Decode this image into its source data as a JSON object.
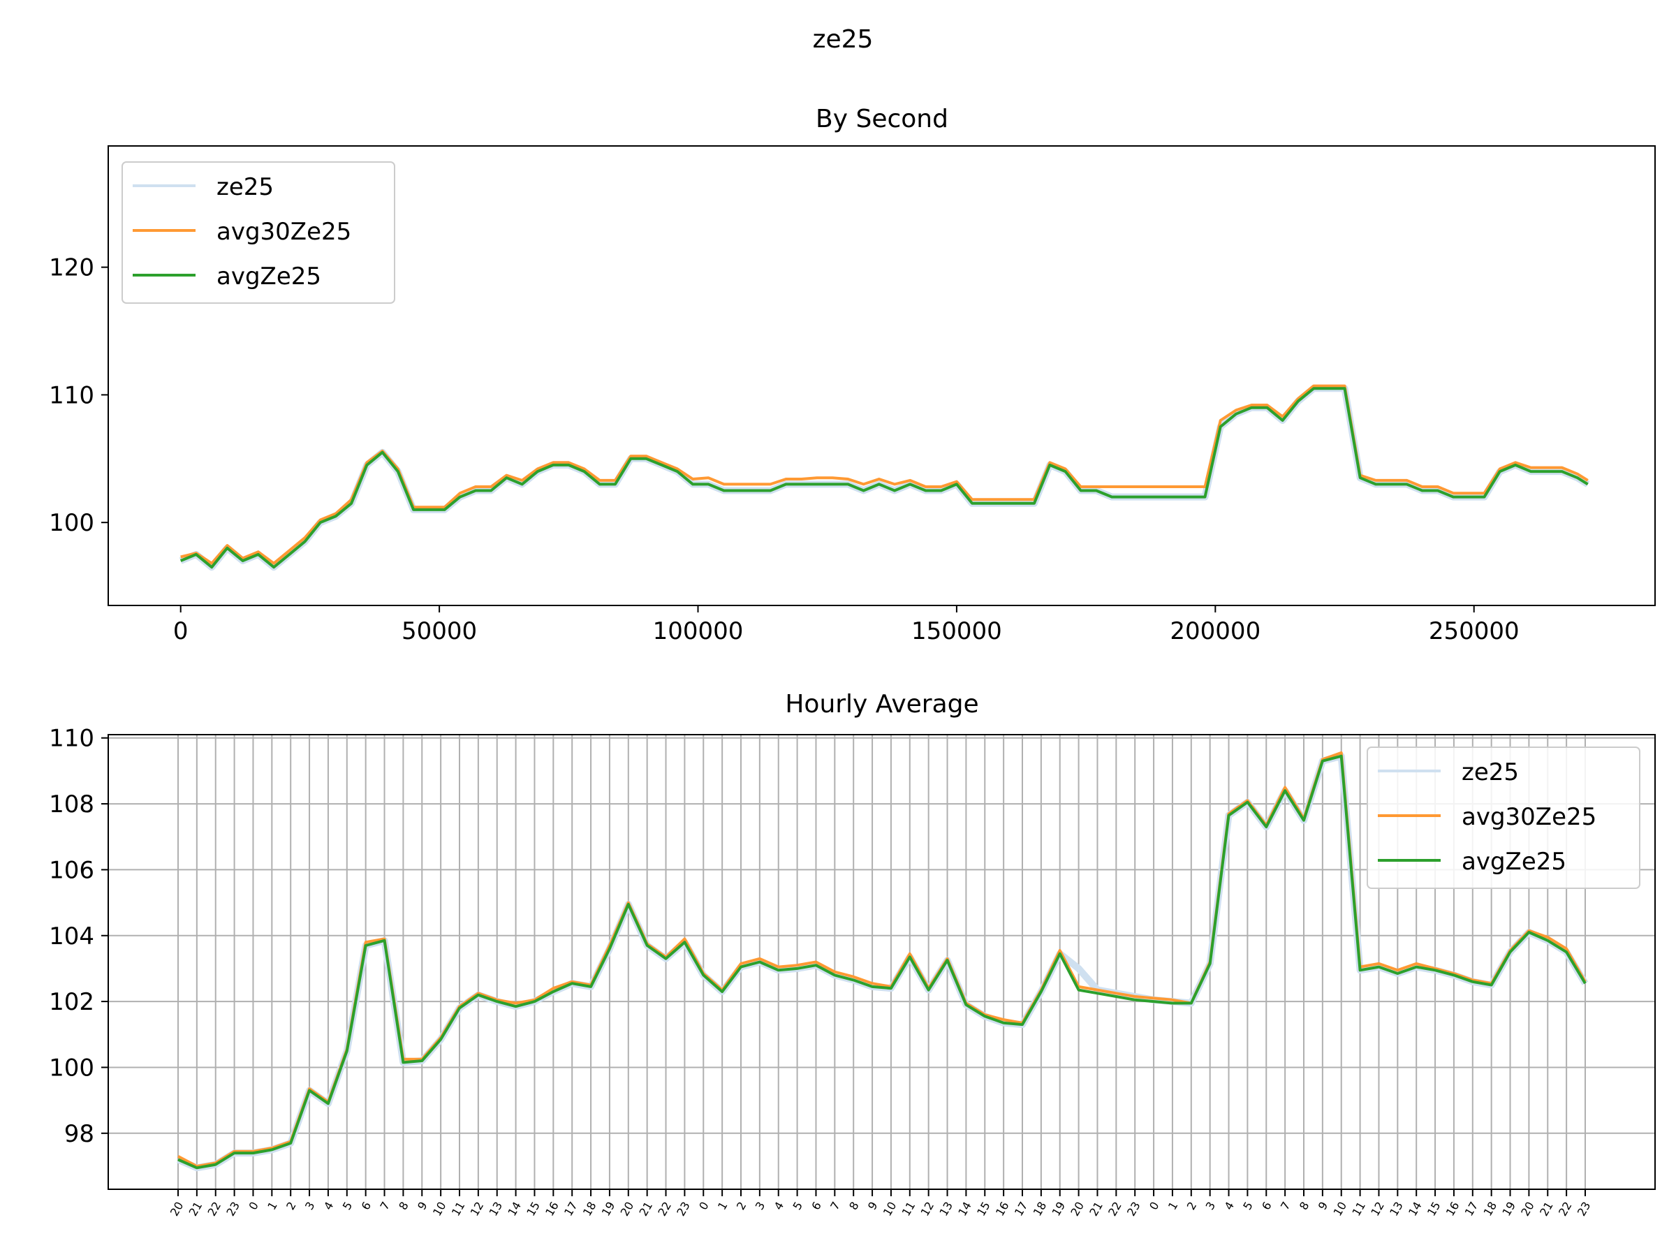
{
  "suptitle": "ze25",
  "colors": {
    "ze25": "#cfe0f0",
    "avg30Ze25": "#ff9933",
    "avgZe25": "#2ca02c",
    "grid": "#b0b0b0",
    "axis": "#000000"
  },
  "chart_data": [
    {
      "type": "line",
      "title": "By Second",
      "xlabel": "",
      "ylabel": "",
      "xlim": [
        -14000,
        285000
      ],
      "ylim": [
        93.5,
        129.5
      ],
      "xticks": [
        0,
        50000,
        100000,
        150000,
        200000,
        250000
      ],
      "yticks": [
        100,
        110,
        120
      ],
      "grid": false,
      "legend": "upper-left",
      "series": [
        {
          "name": "ze25",
          "x": [
            0,
            3000,
            6000,
            9000,
            12000,
            15000,
            18000,
            21000,
            24000,
            27000,
            30000,
            33000,
            36000,
            39000,
            42000,
            45000,
            48000,
            51000,
            54000,
            57000,
            60000,
            63000,
            66000,
            69000,
            72000,
            75000,
            78000,
            81000,
            84000,
            87000,
            90000,
            93000,
            96000,
            99000,
            102000,
            105000,
            108000,
            111000,
            114000,
            117000,
            120000,
            123000,
            126000,
            129000,
            132000,
            135000,
            138000,
            141000,
            144000,
            147000,
            150000,
            153000,
            156000,
            159000,
            162000,
            165000,
            168000,
            171000,
            174000,
            177000,
            180000,
            183000,
            186000,
            189000,
            192000,
            195000,
            198000,
            201000,
            204000,
            207000,
            210000,
            213000,
            216000,
            219000,
            222000,
            225000,
            228000,
            231000,
            234000,
            237000,
            240000,
            243000,
            246000,
            249000,
            252000,
            255000,
            258000,
            261000,
            264000,
            267000,
            270000,
            272000
          ],
          "y": [
            97,
            97.5,
            96.5,
            98,
            97,
            97.5,
            96.5,
            97.5,
            98.5,
            100,
            100.5,
            101.5,
            104.5,
            105.5,
            104,
            101,
            101,
            101,
            102,
            102.5,
            102.5,
            103.5,
            103,
            104,
            104.5,
            104.5,
            104,
            103,
            103,
            105,
            105,
            104.5,
            104,
            103,
            103,
            102.5,
            102.5,
            102.5,
            102.5,
            103,
            103,
            103,
            103,
            103,
            102.5,
            103,
            102.5,
            103,
            102.5,
            102.5,
            103,
            101.5,
            101.5,
            101.5,
            101.5,
            101.5,
            104.5,
            104,
            102.5,
            102.5,
            102,
            102,
            102,
            102,
            102,
            102,
            102,
            107.5,
            108.5,
            109,
            109,
            108,
            109.5,
            110.5,
            110.5,
            110.5,
            103.5,
            103,
            103,
            103,
            102.5,
            102.5,
            102,
            102,
            102,
            104,
            104.5,
            104,
            104,
            104,
            103.5,
            103
          ]
        },
        {
          "name": "avg30Ze25",
          "x": [
            0,
            3000,
            6000,
            9000,
            12000,
            15000,
            18000,
            21000,
            24000,
            27000,
            30000,
            33000,
            36000,
            39000,
            42000,
            45000,
            48000,
            51000,
            54000,
            57000,
            60000,
            63000,
            66000,
            69000,
            72000,
            75000,
            78000,
            81000,
            84000,
            87000,
            90000,
            93000,
            96000,
            99000,
            102000,
            105000,
            108000,
            111000,
            114000,
            117000,
            120000,
            123000,
            126000,
            129000,
            132000,
            135000,
            138000,
            141000,
            144000,
            147000,
            150000,
            153000,
            156000,
            159000,
            162000,
            165000,
            168000,
            171000,
            174000,
            177000,
            180000,
            183000,
            186000,
            189000,
            192000,
            195000,
            198000,
            201000,
            204000,
            207000,
            210000,
            213000,
            216000,
            219000,
            222000,
            225000,
            228000,
            231000,
            234000,
            237000,
            240000,
            243000,
            246000,
            249000,
            252000,
            255000,
            258000,
            261000,
            264000,
            267000,
            270000,
            272000
          ],
          "y": [
            97.3,
            97.6,
            96.8,
            98.2,
            97.2,
            97.7,
            96.8,
            97.8,
            98.8,
            100.2,
            100.7,
            101.8,
            104.7,
            105.6,
            104.2,
            101.2,
            101.2,
            101.2,
            102.3,
            102.8,
            102.8,
            103.7,
            103.3,
            104.2,
            104.7,
            104.7,
            104.2,
            103.3,
            103.3,
            105.2,
            105.2,
            104.7,
            104.2,
            103.4,
            103.5,
            103,
            103,
            103,
            103,
            103.4,
            103.4,
            103.5,
            103.5,
            103.4,
            103,
            103.4,
            103,
            103.3,
            102.8,
            102.8,
            103.2,
            101.8,
            101.8,
            101.8,
            101.8,
            101.8,
            104.7,
            104.2,
            102.8,
            102.8,
            102.8,
            102.8,
            102.8,
            102.8,
            102.8,
            102.8,
            102.8,
            108,
            108.8,
            109.2,
            109.2,
            108.3,
            109.7,
            110.7,
            110.7,
            110.7,
            103.7,
            103.3,
            103.3,
            103.3,
            102.8,
            102.8,
            102.3,
            102.3,
            102.3,
            104.2,
            104.7,
            104.3,
            104.3,
            104.3,
            103.8,
            103.3
          ]
        },
        {
          "name": "avgZe25",
          "x": [
            0,
            3000,
            6000,
            9000,
            12000,
            15000,
            18000,
            21000,
            24000,
            27000,
            30000,
            33000,
            36000,
            39000,
            42000,
            45000,
            48000,
            51000,
            54000,
            57000,
            60000,
            63000,
            66000,
            69000,
            72000,
            75000,
            78000,
            81000,
            84000,
            87000,
            90000,
            93000,
            96000,
            99000,
            102000,
            105000,
            108000,
            111000,
            114000,
            117000,
            120000,
            123000,
            126000,
            129000,
            132000,
            135000,
            138000,
            141000,
            144000,
            147000,
            150000,
            153000,
            156000,
            159000,
            162000,
            165000,
            168000,
            171000,
            174000,
            177000,
            180000,
            183000,
            186000,
            189000,
            192000,
            195000,
            198000,
            201000,
            204000,
            207000,
            210000,
            213000,
            216000,
            219000,
            222000,
            225000,
            228000,
            231000,
            234000,
            237000,
            240000,
            243000,
            246000,
            249000,
            252000,
            255000,
            258000,
            261000,
            264000,
            267000,
            270000,
            272000
          ],
          "y": [
            97,
            97.5,
            96.5,
            98,
            97,
            97.5,
            96.5,
            97.5,
            98.5,
            100,
            100.5,
            101.5,
            104.5,
            105.5,
            104,
            101,
            101,
            101,
            102,
            102.5,
            102.5,
            103.5,
            103,
            104,
            104.5,
            104.5,
            104,
            103,
            103,
            105,
            105,
            104.5,
            104,
            103,
            103,
            102.5,
            102.5,
            102.5,
            102.5,
            103,
            103,
            103,
            103,
            103,
            102.5,
            103,
            102.5,
            103,
            102.5,
            102.5,
            103,
            101.5,
            101.5,
            101.5,
            101.5,
            101.5,
            104.5,
            104,
            102.5,
            102.5,
            102,
            102,
            102,
            102,
            102,
            102,
            102,
            107.5,
            108.5,
            109,
            109,
            108,
            109.5,
            110.5,
            110.5,
            110.5,
            103.5,
            103,
            103,
            103,
            102.5,
            102.5,
            102,
            102,
            102,
            104,
            104.5,
            104,
            104,
            104,
            103.5,
            103
          ]
        }
      ]
    },
    {
      "type": "line",
      "title": "Hourly Average",
      "xlabel": "",
      "ylabel": "",
      "ylim": [
        96.3,
        110.1
      ],
      "yticks": [
        98,
        100,
        102,
        104,
        106,
        108,
        110
      ],
      "categories": [
        "20",
        "21",
        "22",
        "23",
        "0",
        "1",
        "2",
        "3",
        "4",
        "5",
        "6",
        "7",
        "8",
        "9",
        "10",
        "11",
        "12",
        "13",
        "14",
        "15",
        "16",
        "17",
        "18",
        "19",
        "20",
        "21",
        "22",
        "23",
        "0",
        "1",
        "2",
        "3",
        "4",
        "5",
        "6",
        "7",
        "8",
        "9",
        "10",
        "11",
        "12",
        "13",
        "14",
        "15",
        "16",
        "17",
        "18",
        "19",
        "20",
        "21",
        "22",
        "23",
        "0",
        "1",
        "2",
        "3",
        "4",
        "5",
        "6",
        "7",
        "8",
        "9",
        "10",
        "11",
        "12",
        "13",
        "14",
        "15",
        "16",
        "17",
        "18",
        "19",
        "20",
        "21",
        "22",
        "23"
      ],
      "grid": true,
      "legend": "upper-right",
      "series": [
        {
          "name": "ze25",
          "values": [
            97.2,
            96.95,
            97.05,
            97.4,
            97.4,
            97.5,
            97.7,
            99.3,
            98.9,
            100.5,
            103.7,
            103.85,
            100.15,
            100.2,
            100.85,
            101.8,
            102.2,
            102,
            101.85,
            102,
            102.3,
            102.55,
            102.45,
            103.6,
            104.95,
            103.7,
            103.3,
            103.8,
            102.8,
            102.3,
            103.05,
            103.2,
            102.95,
            103,
            103.1,
            102.8,
            102.65,
            102.45,
            102.4,
            103.35,
            102.35,
            103.25,
            101.9,
            101.55,
            101.35,
            101.3,
            102.3,
            103.45,
            103,
            102.35,
            102.25,
            102.15,
            102.05,
            102,
            101.95,
            103.15,
            107.65,
            108.05,
            107.3,
            108.4,
            107.5,
            109.3,
            109.45,
            102.95,
            103.05,
            102.85,
            103.05,
            102.95,
            102.8,
            102.6,
            102.5,
            103.5,
            104.1,
            103.85,
            103.5,
            102.55
          ]
        },
        {
          "name": "avg30Ze25",
          "values": [
            97.3,
            97,
            97.1,
            97.45,
            97.45,
            97.55,
            97.75,
            99.35,
            98.95,
            100.55,
            103.8,
            103.9,
            100.25,
            100.25,
            100.9,
            101.85,
            102.25,
            102.05,
            101.95,
            102.05,
            102.4,
            102.6,
            102.5,
            103.7,
            105,
            103.75,
            103.35,
            103.9,
            102.85,
            102.35,
            103.15,
            103.3,
            103.05,
            103.1,
            103.2,
            102.9,
            102.75,
            102.55,
            102.45,
            103.45,
            102.4,
            103.3,
            101.95,
            101.6,
            101.45,
            101.35,
            102.35,
            103.55,
            102.45,
            102.35,
            102.25,
            102.15,
            102.1,
            102.05,
            101.95,
            103.2,
            107.7,
            108.1,
            107.35,
            108.5,
            107.55,
            109.35,
            109.55,
            103.05,
            103.15,
            102.95,
            103.15,
            103,
            102.85,
            102.65,
            102.55,
            103.55,
            104.15,
            103.95,
            103.6,
            102.6
          ]
        },
        {
          "name": "avgZe25",
          "values": [
            97.2,
            96.95,
            97.05,
            97.4,
            97.4,
            97.5,
            97.7,
            99.3,
            98.9,
            100.5,
            103.7,
            103.85,
            100.15,
            100.2,
            100.85,
            101.8,
            102.2,
            102,
            101.85,
            102,
            102.3,
            102.55,
            102.45,
            103.6,
            104.95,
            103.7,
            103.3,
            103.8,
            102.8,
            102.3,
            103.05,
            103.2,
            102.95,
            103,
            103.1,
            102.8,
            102.65,
            102.45,
            102.4,
            103.35,
            102.35,
            103.25,
            101.9,
            101.55,
            101.35,
            101.3,
            102.3,
            103.45,
            102.35,
            102.25,
            102.15,
            102.05,
            102,
            101.95,
            101.95,
            103.15,
            107.65,
            108.05,
            107.3,
            108.4,
            107.5,
            109.3,
            109.45,
            102.95,
            103.05,
            102.85,
            103.05,
            102.95,
            102.8,
            102.6,
            102.5,
            103.5,
            104.1,
            103.85,
            103.5,
            102.55
          ]
        }
      ]
    }
  ]
}
